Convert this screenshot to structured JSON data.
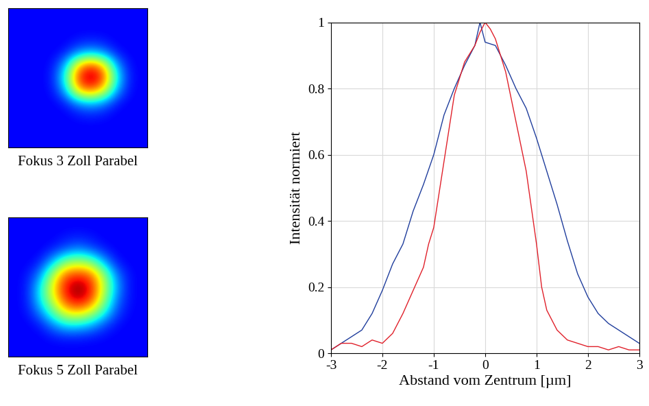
{
  "chart_data": [
    {
      "type": "heatmap",
      "title": "Fokus 3 Zoll Parabel",
      "tick_labels": false,
      "color_range": [
        0,
        1
      ],
      "cells": [
        [
          0.12,
          0.12,
          0.12,
          0.12,
          0.12,
          0.12,
          0.12,
          0.12,
          0.12,
          0.12,
          0.12
        ],
        [
          0.12,
          0.12,
          0.12,
          0.12,
          0.12,
          0.12,
          0.12,
          0.12,
          0.12,
          0.12,
          0.12
        ],
        [
          0.12,
          0.12,
          0.12,
          0.12,
          0.12,
          0.14,
          0.15,
          0.14,
          0.12,
          0.12,
          0.12
        ],
        [
          0.12,
          0.12,
          0.12,
          0.12,
          0.15,
          0.25,
          0.3,
          0.25,
          0.15,
          0.12,
          0.12
        ],
        [
          0.12,
          0.12,
          0.12,
          0.14,
          0.3,
          0.7,
          0.85,
          0.7,
          0.3,
          0.14,
          0.12
        ],
        [
          0.12,
          0.12,
          0.12,
          0.15,
          0.4,
          0.85,
          1.0,
          0.85,
          0.4,
          0.15,
          0.12
        ],
        [
          0.12,
          0.12,
          0.12,
          0.14,
          0.3,
          0.7,
          0.8,
          0.65,
          0.3,
          0.14,
          0.12
        ],
        [
          0.12,
          0.12,
          0.12,
          0.12,
          0.15,
          0.25,
          0.3,
          0.25,
          0.15,
          0.12,
          0.12
        ],
        [
          0.12,
          0.12,
          0.12,
          0.12,
          0.12,
          0.14,
          0.15,
          0.14,
          0.12,
          0.12,
          0.12
        ],
        [
          0.12,
          0.12,
          0.12,
          0.12,
          0.12,
          0.12,
          0.12,
          0.12,
          0.12,
          0.12,
          0.12
        ],
        [
          0.12,
          0.12,
          0.12,
          0.12,
          0.12,
          0.12,
          0.12,
          0.12,
          0.12,
          0.12,
          0.12
        ]
      ]
    },
    {
      "type": "heatmap",
      "title": "Fokus 5 Zoll Parabel",
      "tick_labels": false,
      "color_range": [
        0,
        1
      ],
      "cells": [
        [
          0.12,
          0.12,
          0.12,
          0.12,
          0.12,
          0.12,
          0.12,
          0.12,
          0.12,
          0.12,
          0.12
        ],
        [
          0.12,
          0.12,
          0.12,
          0.12,
          0.14,
          0.15,
          0.14,
          0.12,
          0.12,
          0.12,
          0.12
        ],
        [
          0.12,
          0.12,
          0.12,
          0.15,
          0.2,
          0.25,
          0.2,
          0.15,
          0.12,
          0.12,
          0.12
        ],
        [
          0.12,
          0.12,
          0.15,
          0.3,
          0.5,
          0.55,
          0.5,
          0.3,
          0.15,
          0.12,
          0.12
        ],
        [
          0.12,
          0.14,
          0.25,
          0.55,
          0.8,
          0.85,
          0.8,
          0.55,
          0.25,
          0.14,
          0.12
        ],
        [
          0.12,
          0.15,
          0.35,
          0.65,
          0.9,
          1.0,
          0.9,
          0.6,
          0.3,
          0.14,
          0.12
        ],
        [
          0.12,
          0.15,
          0.35,
          0.6,
          0.85,
          0.95,
          0.85,
          0.55,
          0.25,
          0.14,
          0.12
        ],
        [
          0.12,
          0.14,
          0.25,
          0.45,
          0.65,
          0.7,
          0.6,
          0.4,
          0.2,
          0.13,
          0.12
        ],
        [
          0.12,
          0.12,
          0.15,
          0.25,
          0.35,
          0.35,
          0.3,
          0.2,
          0.14,
          0.12,
          0.12
        ],
        [
          0.12,
          0.12,
          0.12,
          0.14,
          0.15,
          0.15,
          0.14,
          0.13,
          0.12,
          0.12,
          0.12
        ],
        [
          0.12,
          0.12,
          0.12,
          0.12,
          0.12,
          0.12,
          0.12,
          0.12,
          0.12,
          0.12,
          0.12
        ]
      ]
    },
    {
      "type": "line",
      "xlabel": "Abstand vom Zentrum [µm]",
      "ylabel": "Intensität normiert",
      "xlim": [
        -3,
        3
      ],
      "ylim": [
        0,
        1
      ],
      "xticks": [
        -3,
        -2,
        -1,
        0,
        1,
        2,
        3
      ],
      "yticks": [
        0,
        0.2,
        0.4,
        0.6,
        0.8,
        1
      ],
      "grid": true,
      "series": [
        {
          "color": "#1f3d9c",
          "x": [
            -3.0,
            -2.8,
            -2.6,
            -2.4,
            -2.2,
            -2.0,
            -1.8,
            -1.6,
            -1.4,
            -1.2,
            -1.0,
            -0.8,
            -0.6,
            -0.4,
            -0.2,
            -0.1,
            0.0,
            0.2,
            0.4,
            0.6,
            0.8,
            1.0,
            1.2,
            1.4,
            1.6,
            1.8,
            2.0,
            2.2,
            2.4,
            2.6,
            2.8,
            3.0
          ],
          "values": [
            0.01,
            0.03,
            0.05,
            0.07,
            0.12,
            0.19,
            0.27,
            0.33,
            0.43,
            0.51,
            0.6,
            0.72,
            0.8,
            0.87,
            0.93,
            1.0,
            0.94,
            0.93,
            0.87,
            0.8,
            0.74,
            0.65,
            0.55,
            0.45,
            0.34,
            0.24,
            0.17,
            0.12,
            0.09,
            0.07,
            0.05,
            0.03
          ]
        },
        {
          "color": "#e0202a",
          "x": [
            -3.0,
            -2.8,
            -2.6,
            -2.4,
            -2.2,
            -2.0,
            -1.8,
            -1.6,
            -1.4,
            -1.2,
            -1.1,
            -1.0,
            -0.8,
            -0.6,
            -0.4,
            -0.2,
            -0.1,
            0.0,
            0.1,
            0.2,
            0.4,
            0.6,
            0.8,
            1.0,
            1.1,
            1.2,
            1.4,
            1.6,
            1.8,
            2.0,
            2.2,
            2.4,
            2.6,
            2.8,
            3.0
          ],
          "values": [
            0.01,
            0.03,
            0.03,
            0.02,
            0.04,
            0.03,
            0.06,
            0.12,
            0.19,
            0.26,
            0.33,
            0.38,
            0.58,
            0.78,
            0.88,
            0.93,
            0.97,
            1.0,
            0.98,
            0.95,
            0.85,
            0.7,
            0.55,
            0.33,
            0.2,
            0.13,
            0.07,
            0.04,
            0.03,
            0.02,
            0.02,
            0.01,
            0.02,
            0.01,
            0.01
          ]
        }
      ]
    }
  ]
}
